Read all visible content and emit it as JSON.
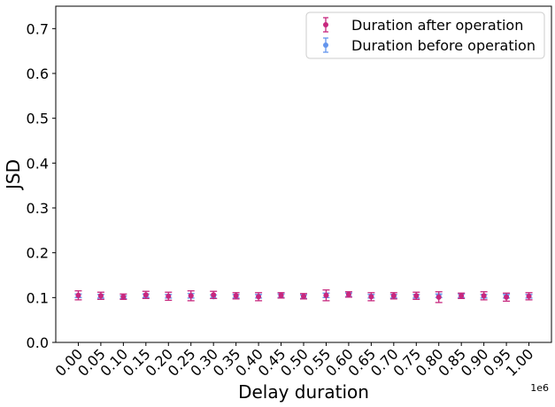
{
  "chart_data": {
    "type": "scatter",
    "xlabel": "Delay duration",
    "ylabel": "JSD",
    "x_offset_label": "1e6",
    "x": [
      0.0,
      0.05,
      0.1,
      0.15,
      0.2,
      0.25,
      0.3,
      0.35,
      0.4,
      0.45,
      0.5,
      0.55,
      0.6,
      0.65,
      0.7,
      0.75,
      0.8,
      0.85,
      0.9,
      0.95,
      1.0
    ],
    "xtick_labels": [
      "0.00",
      "0.05",
      "0.10",
      "0.15",
      "0.20",
      "0.25",
      "0.30",
      "0.35",
      "0.40",
      "0.45",
      "0.50",
      "0.55",
      "0.60",
      "0.65",
      "0.70",
      "0.75",
      "0.80",
      "0.85",
      "0.90",
      "0.95",
      "1.00"
    ],
    "yticks": [
      0.0,
      0.1,
      0.2,
      0.3,
      0.4,
      0.5,
      0.6,
      0.7
    ],
    "ytick_labels": [
      "0.0",
      "0.1",
      "0.2",
      "0.3",
      "0.4",
      "0.5",
      "0.6",
      "0.7"
    ],
    "xlim": [
      -0.05,
      1.05
    ],
    "ylim": [
      0.0,
      0.75
    ],
    "grid": false,
    "legend_position": "top-right",
    "series": [
      {
        "name": "Duration before operation",
        "color": "#6495ED",
        "values": [
          0.104,
          0.103,
          0.101,
          0.104,
          0.103,
          0.104,
          0.102,
          0.103,
          0.103,
          0.104,
          0.102,
          0.105,
          0.106,
          0.103,
          0.103,
          0.103,
          0.104,
          0.104,
          0.103,
          0.103,
          0.103
        ],
        "errors": [
          0.004,
          0.004,
          0.003,
          0.004,
          0.004,
          0.005,
          0.004,
          0.004,
          0.004,
          0.004,
          0.004,
          0.005,
          0.004,
          0.004,
          0.004,
          0.004,
          0.004,
          0.004,
          0.004,
          0.004,
          0.004
        ]
      },
      {
        "name": "Duration after operation",
        "color": "#C7277E",
        "values": [
          0.105,
          0.104,
          0.102,
          0.106,
          0.103,
          0.104,
          0.106,
          0.104,
          0.102,
          0.105,
          0.103,
          0.105,
          0.107,
          0.102,
          0.104,
          0.104,
          0.101,
          0.104,
          0.104,
          0.101,
          0.103
        ],
        "errors": [
          0.01,
          0.008,
          0.006,
          0.008,
          0.009,
          0.011,
          0.008,
          0.007,
          0.009,
          0.006,
          0.006,
          0.012,
          0.006,
          0.009,
          0.007,
          0.008,
          0.012,
          0.006,
          0.009,
          0.009,
          0.008
        ]
      }
    ],
    "legend_order": [
      "Duration after operation",
      "Duration before operation"
    ]
  }
}
